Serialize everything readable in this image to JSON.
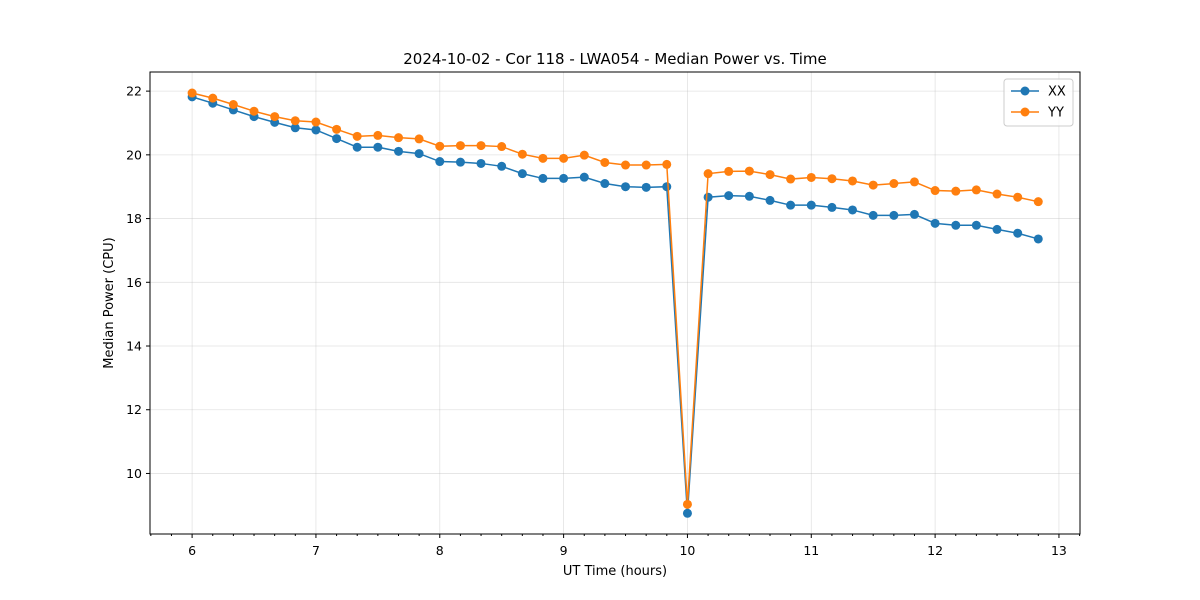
{
  "chart_data": {
    "type": "line",
    "title": "2024-10-02 - Cor 118 - LWA054 - Median Power vs. Time",
    "xlabel": "UT Time (hours)",
    "ylabel": "Median Power (CPU)",
    "xlim": [
      5.66,
      13.17
    ],
    "ylim": [
      8.1,
      22.6
    ],
    "xticks": [
      6,
      7,
      8,
      9,
      10,
      11,
      12,
      13
    ],
    "xticklabels": [
      "6",
      "7",
      "8",
      "9",
      "10",
      "11",
      "12",
      "13"
    ],
    "yticks": [
      10,
      12,
      14,
      16,
      18,
      20,
      22
    ],
    "yticklabels": [
      "10",
      "12",
      "14",
      "16",
      "18",
      "20",
      "22"
    ],
    "grid": true,
    "legend_position": "top-right",
    "x": [
      6.0,
      6.167,
      6.333,
      6.5,
      6.667,
      6.833,
      7.0,
      7.167,
      7.333,
      7.5,
      7.667,
      7.833,
      8.0,
      8.167,
      8.333,
      8.5,
      8.667,
      8.833,
      9.0,
      9.167,
      9.333,
      9.5,
      9.667,
      9.833,
      10.0,
      10.167,
      10.333,
      10.5,
      10.667,
      10.833,
      11.0,
      11.167,
      11.333,
      11.5,
      11.667,
      11.833,
      12.0,
      12.167,
      12.333,
      12.5,
      12.667,
      12.833
    ],
    "series": [
      {
        "name": "XX",
        "color": "#1f77b4",
        "values": [
          21.82,
          21.62,
          21.41,
          21.2,
          21.02,
          20.85,
          20.78,
          20.51,
          20.24,
          20.24,
          20.11,
          20.04,
          19.79,
          19.77,
          19.73,
          19.64,
          19.41,
          19.26,
          19.26,
          19.3,
          19.1,
          19.0,
          18.98,
          19.0,
          8.75,
          18.67,
          18.72,
          18.7,
          18.57,
          18.42,
          18.42,
          18.35,
          18.27,
          18.1,
          18.1,
          18.13,
          17.85,
          17.79,
          17.79,
          17.66,
          17.54,
          17.36
        ]
      },
      {
        "name": "YY",
        "color": "#ff7f0e",
        "values": [
          21.94,
          21.78,
          21.58,
          21.37,
          21.2,
          21.07,
          21.03,
          20.8,
          20.58,
          20.61,
          20.54,
          20.5,
          20.27,
          20.29,
          20.29,
          20.26,
          20.02,
          19.89,
          19.89,
          19.99,
          19.76,
          19.68,
          19.68,
          19.7,
          9.03,
          19.41,
          19.48,
          19.49,
          19.38,
          19.24,
          19.29,
          19.25,
          19.18,
          19.05,
          19.1,
          19.15,
          18.88,
          18.86,
          18.9,
          18.77,
          18.67,
          18.53
        ]
      }
    ]
  }
}
